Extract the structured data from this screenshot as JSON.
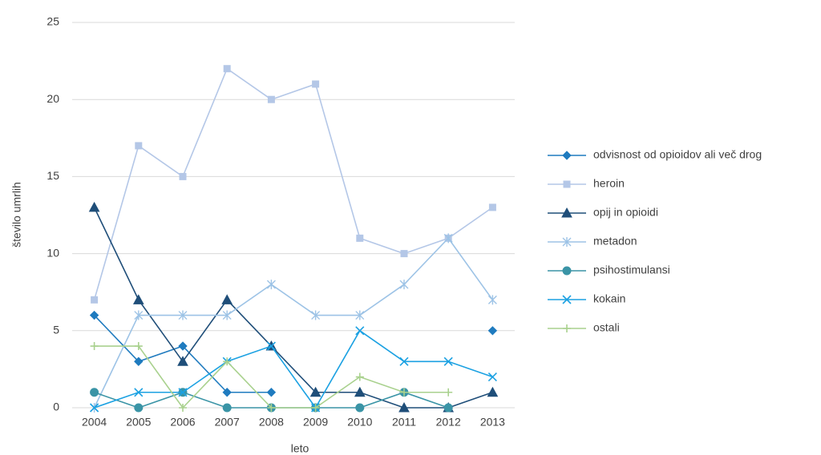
{
  "chart_data": {
    "type": "line",
    "x_label": "leto",
    "y_label": "število umrlih",
    "categories": [
      "2004",
      "2005",
      "2006",
      "2007",
      "2008",
      "2009",
      "2010",
      "2011",
      "2012",
      "2013"
    ],
    "ylim": [
      0,
      25
    ],
    "yticks": [
      0,
      5,
      10,
      15,
      20,
      25
    ],
    "grid": true,
    "legend": "right",
    "series": [
      {
        "name": "odvisnost od opioidov ali več drog",
        "color": "#1f7bbf",
        "marker": "diamond",
        "values": [
          6,
          3,
          4,
          1,
          1,
          null,
          null,
          null,
          null,
          5
        ]
      },
      {
        "name": "heroin",
        "color": "#b4c7e7",
        "marker": "square",
        "values": [
          7,
          17,
          15,
          22,
          20,
          21,
          11,
          10,
          11,
          13
        ]
      },
      {
        "name": "opij in opioidi",
        "color": "#1f4e79",
        "marker": "triangle",
        "values": [
          13,
          7,
          3,
          7,
          4,
          1,
          1,
          0,
          0,
          1
        ]
      },
      {
        "name": "metadon",
        "color": "#9dc3e6",
        "marker": "asterisk",
        "values": [
          0,
          6,
          6,
          6,
          8,
          6,
          6,
          8,
          11,
          7
        ]
      },
      {
        "name": "psihostimulansi",
        "color": "#3a94a6",
        "marker": "circle",
        "values": [
          1,
          0,
          1,
          0,
          0,
          0,
          0,
          1,
          0,
          null
        ]
      },
      {
        "name": "kokain",
        "color": "#1ba1e2",
        "marker": "x",
        "values": [
          0,
          1,
          1,
          3,
          4,
          0,
          5,
          3,
          3,
          2
        ]
      },
      {
        "name": "ostali",
        "color": "#a9d18e",
        "marker": "plus",
        "values": [
          4,
          4,
          0,
          3,
          0,
          0,
          2,
          1,
          1,
          null
        ]
      }
    ]
  }
}
